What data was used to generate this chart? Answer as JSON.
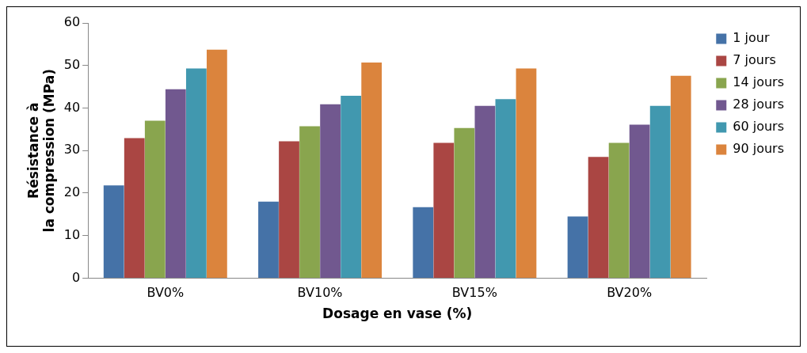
{
  "chart_data": {
    "type": "bar",
    "xlabel": "Dosage en vase (%)",
    "ylabel": "Résistance à la compression (MPa)",
    "categories": [
      "BV0%",
      "BV10%",
      "BV15%",
      "BV20%"
    ],
    "series": [
      {
        "name": "1 jour",
        "color": "#4572a7",
        "values": [
          21.8,
          18.0,
          16.7,
          14.5
        ]
      },
      {
        "name": "7 jours",
        "color": "#aa4643",
        "values": [
          32.9,
          32.2,
          31.8,
          28.5
        ]
      },
      {
        "name": "14 jours",
        "color": "#89a54e",
        "values": [
          37.0,
          35.7,
          35.3,
          31.8
        ]
      },
      {
        "name": "28 jours",
        "color": "#71588f",
        "values": [
          44.4,
          40.9,
          40.5,
          36.1
        ]
      },
      {
        "name": "60 jours",
        "color": "#4198af",
        "values": [
          49.3,
          42.9,
          42.1,
          40.5
        ]
      },
      {
        "name": "90 jours",
        "color": "#db843d",
        "values": [
          53.7,
          50.7,
          49.3,
          47.6
        ]
      }
    ],
    "ylim": [
      0,
      60
    ],
    "yticks": [
      0,
      10,
      20,
      30,
      40,
      50,
      60
    ],
    "grid": false,
    "legend": "top right"
  }
}
